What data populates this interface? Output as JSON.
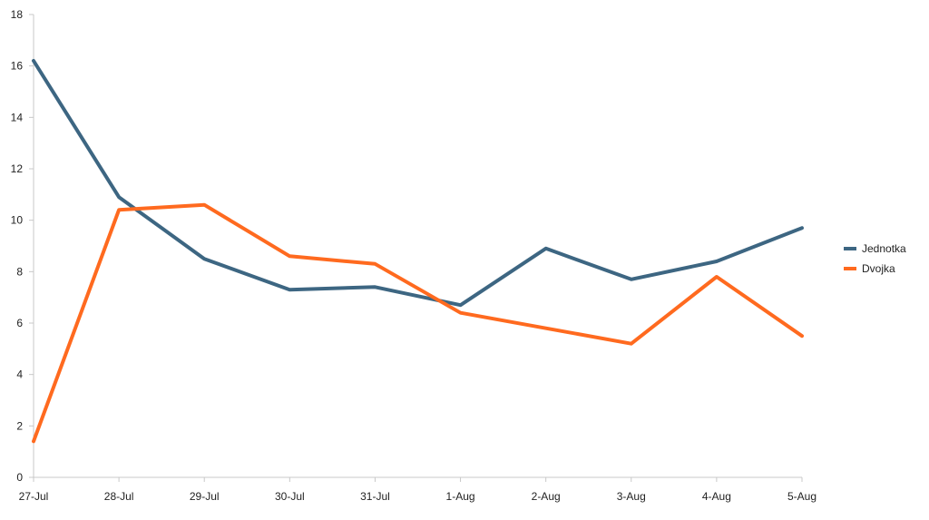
{
  "chart_data": {
    "type": "line",
    "title": "",
    "xlabel": "",
    "ylabel": "",
    "categories": [
      "27-Jul",
      "28-Jul",
      "29-Jul",
      "30-Jul",
      "31-Jul",
      "1-Aug",
      "2-Aug",
      "3-Aug",
      "4-Aug",
      "5-Aug"
    ],
    "ylim": [
      0,
      18
    ],
    "yticks": [
      0,
      2,
      4,
      6,
      8,
      10,
      12,
      14,
      16,
      18
    ],
    "grid": false,
    "legend": "right",
    "series": [
      {
        "name": "Jednotka",
        "color": "#3d6682",
        "values": [
          16.2,
          10.9,
          8.5,
          7.3,
          7.4,
          6.7,
          8.9,
          7.7,
          8.4,
          9.7
        ]
      },
      {
        "name": "Dvojka",
        "color": "#ff6a1f",
        "values": [
          1.4,
          10.4,
          10.6,
          8.6,
          8.3,
          6.4,
          5.8,
          5.2,
          7.8,
          5.5
        ]
      }
    ]
  }
}
